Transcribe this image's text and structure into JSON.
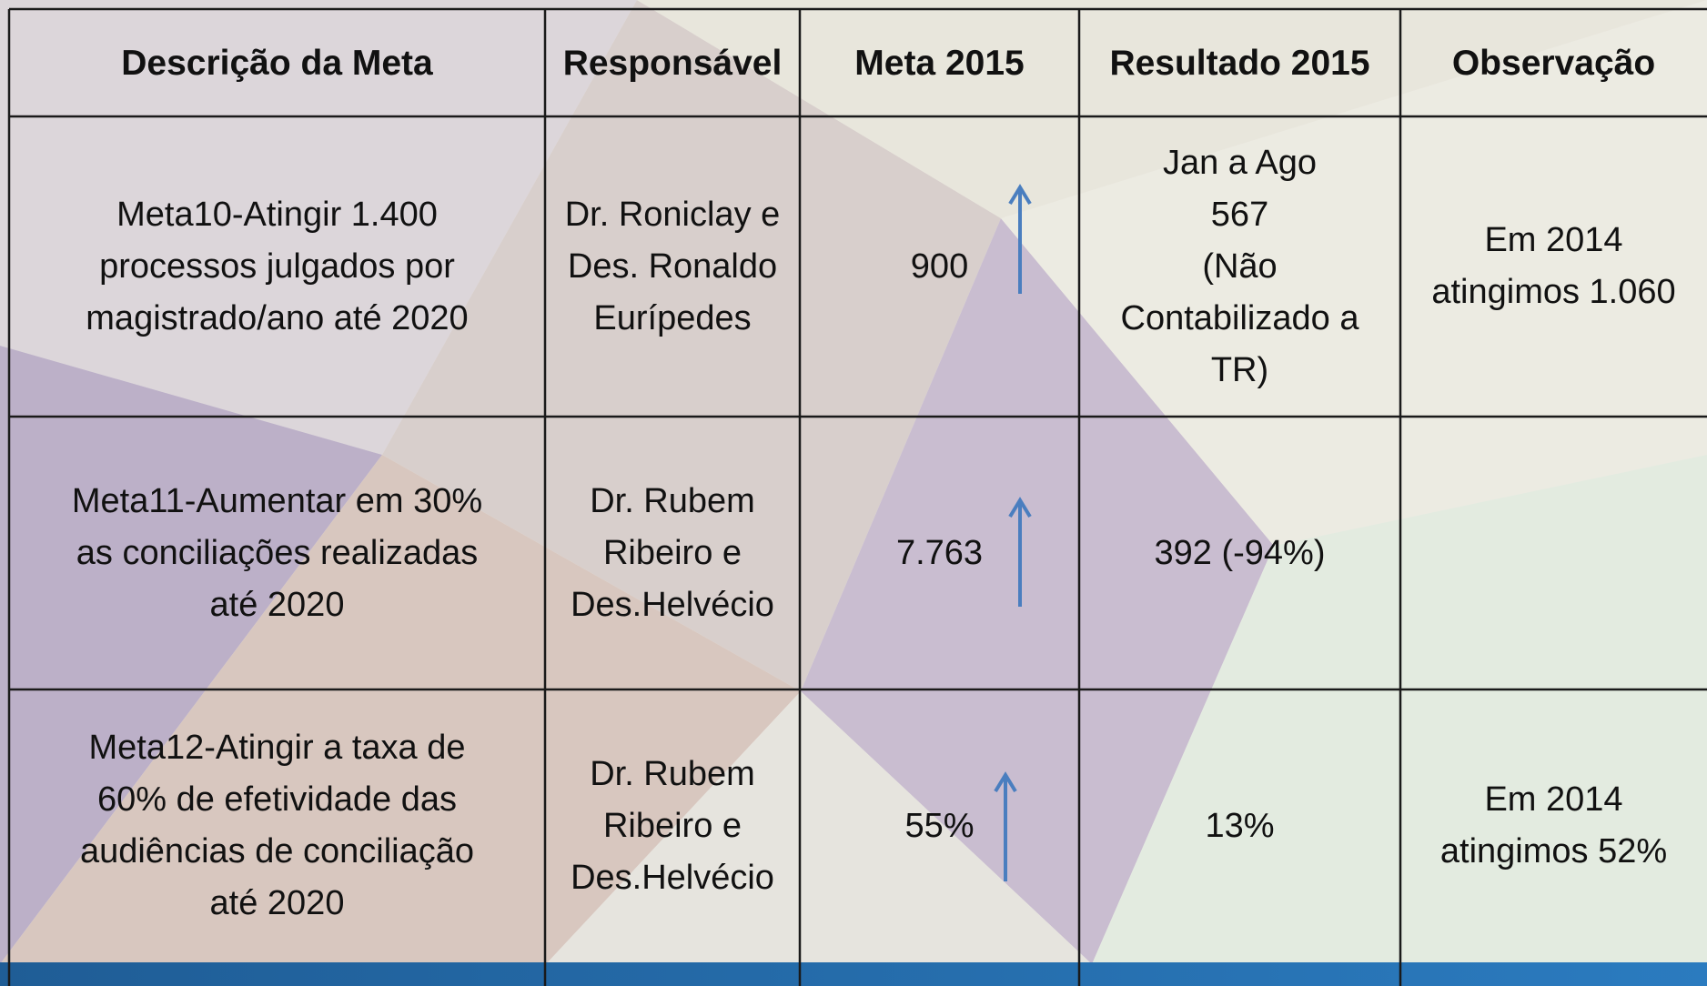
{
  "table": {
    "header": [
      "Descrição da Meta",
      "Responsável",
      "Meta 2015",
      "Resultado 2015",
      "Observação"
    ],
    "rows": [
      [
        [
          "Meta10-Atingir 1.400",
          "processos julgados por",
          "magistrado/ano até 2020"
        ],
        [
          "Dr. Roniclay e",
          "Des. Ronaldo",
          "Eurípedes"
        ],
        [
          "900"
        ],
        [
          "Jan a Ago",
          "567",
          "(Não",
          "Contabilizado a",
          "TR)"
        ],
        [
          "Em 2014",
          "atingimos 1.060"
        ]
      ],
      [
        [
          "Meta11-Aumentar em 30%",
          "as conciliações realizadas",
          "até 2020"
        ],
        [
          "Dr. Rubem",
          "Ribeiro e",
          "Des.Helvécio"
        ],
        [
          "7.763"
        ],
        [
          "392 (-94%)"
        ],
        []
      ],
      [
        [
          "Meta12-Atingir a taxa de",
          "60% de efetividade das",
          "audiências de conciliação",
          "até 2020"
        ],
        [
          "Dr. Rubem",
          "Ribeiro e",
          "Des.Helvécio"
        ],
        [
          "55%"
        ],
        [
          "13%"
        ],
        [
          "Em 2014",
          "atingimos 52%"
        ]
      ]
    ]
  }
}
